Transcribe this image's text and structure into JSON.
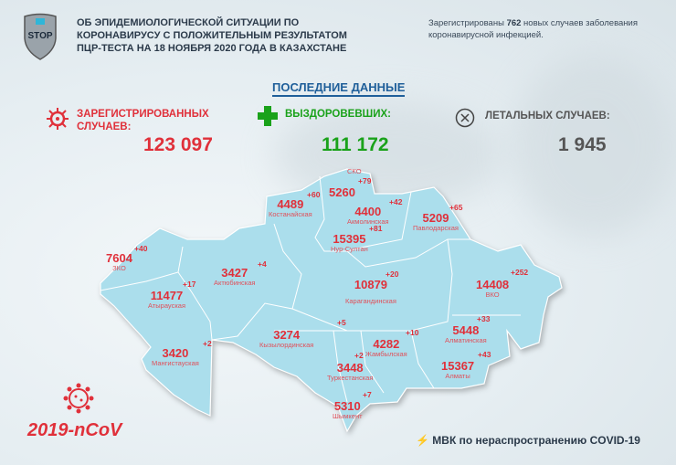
{
  "header": {
    "title_lines": [
      "ОБ ЭПИДЕМИОЛОГИЧЕСКОЙ СИТУАЦИИ ПО",
      "КОРОНАВИРУСУ С ПОЛОЖИТЕЛЬНЫМ РЕЗУЛЬТАТОМ",
      "ПЦР-ТЕСТА НА 18 НОЯБРЯ 2020 ГОДА В КАЗАХСТАНЕ"
    ],
    "logo_text": "STOP",
    "note_prefix": "Зарегистрированы ",
    "note_count": "762",
    "note_suffix": " новых случаев заболевания коронавирусной инфекцией."
  },
  "latest_label": "ПОСЛЕДНИЕ ДАННЫЕ",
  "stats": {
    "registered": {
      "label1": "ЗАРЕГИСТРИРОВАННЫХ",
      "label2": "СЛУЧАЕВ:",
      "value": "123 097",
      "icon": "virus-icon"
    },
    "recovered": {
      "label": "ВЫЗДОРОВЕВШИХ:",
      "value": "111 172",
      "icon": "plus-icon"
    },
    "deaths": {
      "label": "ЛЕТАЛЬНЫХ СЛУЧАЕВ:",
      "value": "1 945",
      "icon": "x-circle-icon"
    }
  },
  "regions": [
    {
      "name": "СКО",
      "total": "5260",
      "delta": "+79"
    },
    {
      "name": "Костанайская",
      "total": "4489",
      "delta": "+60"
    },
    {
      "name": "Акмолинская",
      "total": "4400",
      "delta": "+42"
    },
    {
      "name": "Павлодарская",
      "total": "5209",
      "delta": "+65"
    },
    {
      "name": "Нур-Султан",
      "total": "15395",
      "delta": "+81"
    },
    {
      "name": "ЗКО",
      "total": "7604",
      "delta": "+40"
    },
    {
      "name": "Актюбинская",
      "total": "3427",
      "delta": "+4"
    },
    {
      "name": "Карагандинская",
      "total": "10879",
      "delta": "+20"
    },
    {
      "name": "ВКО",
      "total": "14408",
      "delta": "+252"
    },
    {
      "name": "Атырауская",
      "total": "11477",
      "delta": "+17"
    },
    {
      "name": "Кызылординская",
      "total": "3274",
      "delta": "+5"
    },
    {
      "name": "Жамбылская",
      "total": "4282",
      "delta": "+10"
    },
    {
      "name": "Алматинская",
      "total": "5448",
      "delta": "+33"
    },
    {
      "name": "Мангистауская",
      "total": "3420",
      "delta": "+2"
    },
    {
      "name": "Туркестанская",
      "total": "3448",
      "delta": "+2"
    },
    {
      "name": "Алматы",
      "total": "15367",
      "delta": "+43"
    },
    {
      "name": "Шымкент",
      "total": "5310",
      "delta": "+7"
    }
  ],
  "footer": {
    "ncov": "2019-nCoV",
    "mvk": "МВК по нераспространению COVID-19"
  },
  "colors": {
    "accent_red": "#e0303a",
    "green": "#1aa21a",
    "blue": "#1f5f9a",
    "map": "#abdeec"
  }
}
